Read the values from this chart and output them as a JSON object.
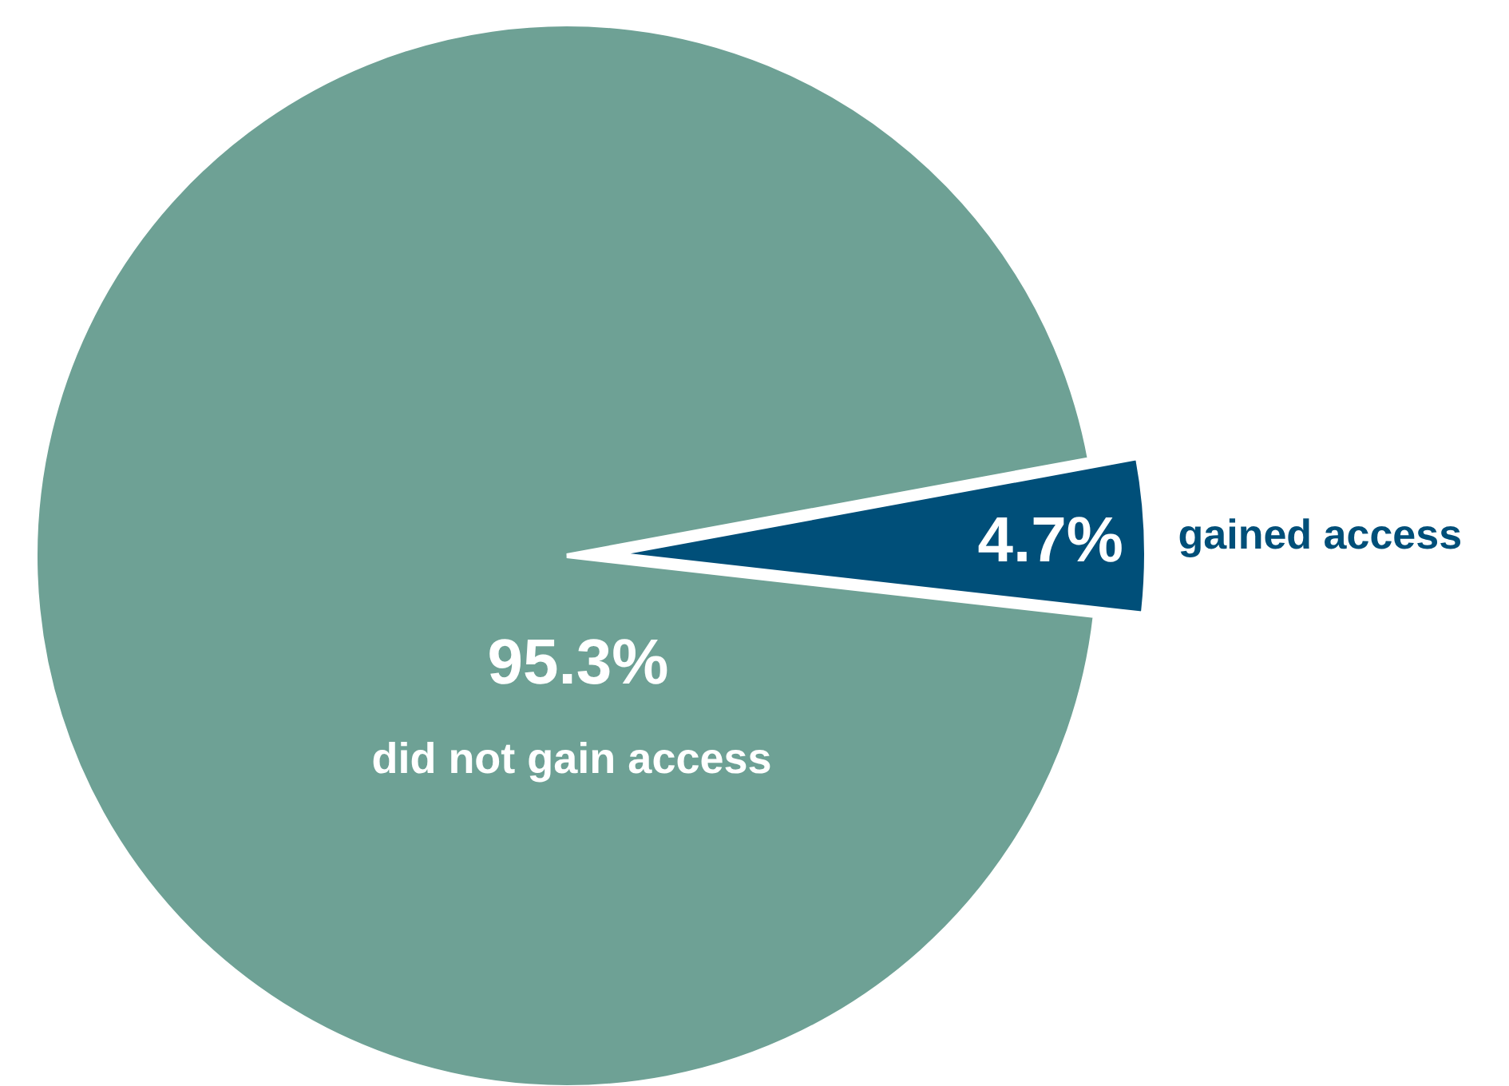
{
  "chart_data": {
    "type": "pie",
    "categories": [
      "gained access",
      "did not gain access"
    ],
    "values": [
      4.7,
      95.3
    ],
    "colors": [
      "#004f79",
      "#6ea195"
    ],
    "value_labels": [
      "4.7%",
      "95.3%"
    ]
  }
}
